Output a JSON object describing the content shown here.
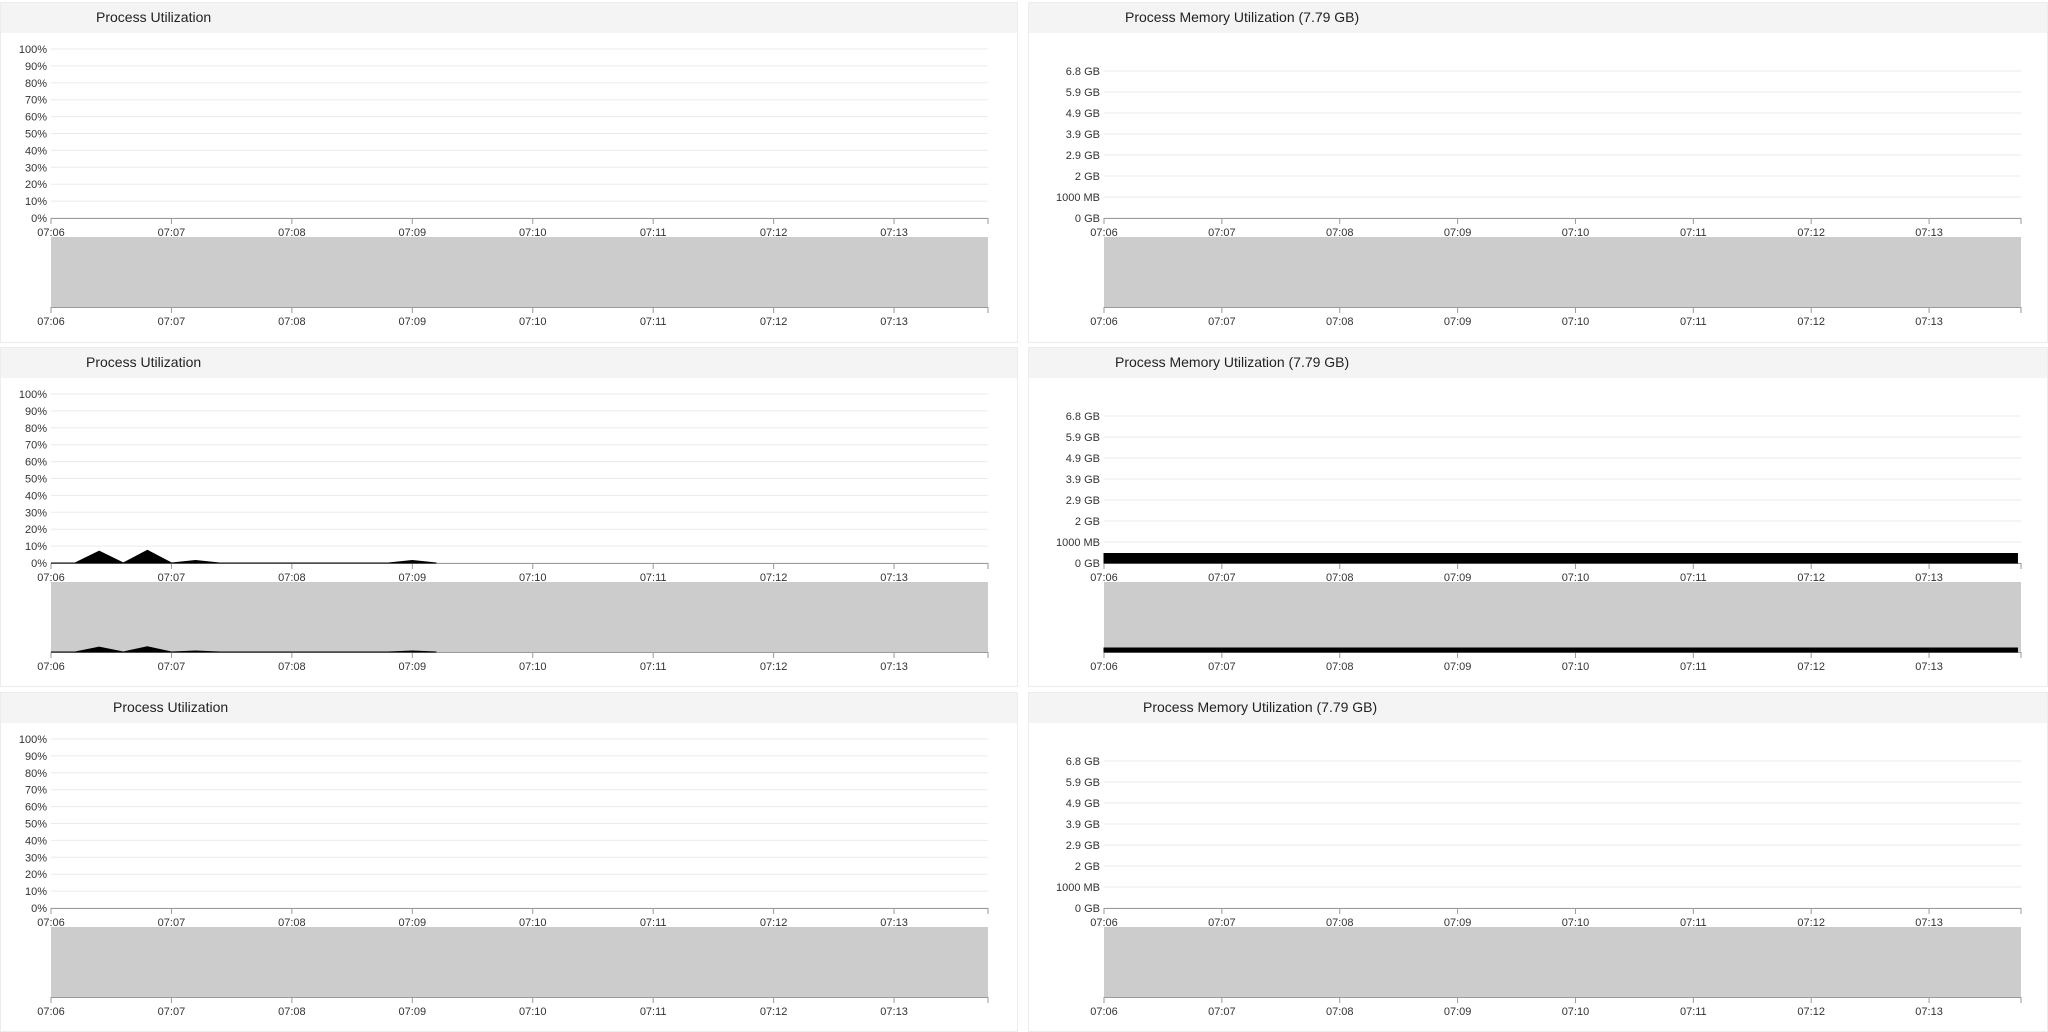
{
  "colors": {
    "grid": "#ebebeb",
    "axis": "#9a9a9a",
    "navigator": "#cccccc",
    "series": "#000000"
  },
  "panels": [
    {
      "title": "Process Utilization",
      "chart_data": {
        "type": "area",
        "title": "Process Utilization",
        "y_ticks": [
          "0%",
          "10%",
          "20%",
          "30%",
          "40%",
          "50%",
          "60%",
          "70%",
          "80%",
          "90%",
          "100%"
        ],
        "ylim": [
          0,
          100
        ],
        "x_ticks": [
          "07:06",
          "07:07",
          "07:08",
          "07:09",
          "07:10",
          "07:11",
          "07:12",
          "07:13"
        ],
        "x": [],
        "values": []
      }
    },
    {
      "title": "Process Memory Utilization (7.79 GB)",
      "chart_data": {
        "type": "area",
        "title": "Process Memory Utilization (7.79 GB)",
        "y_ticks": [
          "0 GB",
          "1000 MB",
          "2 GB",
          "2.9 GB",
          "3.9 GB",
          "4.9 GB",
          "5.9 GB",
          "6.8 GB"
        ],
        "ylim": [
          0,
          7.79
        ],
        "x_ticks": [
          "07:06",
          "07:07",
          "07:08",
          "07:09",
          "07:10",
          "07:11",
          "07:12",
          "07:13"
        ],
        "x": [],
        "values": []
      }
    },
    {
      "title": "Process Utilization",
      "chart_data": {
        "type": "area",
        "title": "Process Utilization",
        "y_ticks": [
          "0%",
          "10%",
          "20%",
          "30%",
          "40%",
          "50%",
          "60%",
          "70%",
          "80%",
          "90%",
          "100%"
        ],
        "ylim": [
          0,
          100
        ],
        "x_ticks": [
          "07:06",
          "07:07",
          "07:08",
          "07:09",
          "07:10",
          "07:11",
          "07:12",
          "07:13"
        ],
        "x": [
          "07:06:00",
          "07:06:12",
          "07:06:24",
          "07:06:36",
          "07:06:48",
          "07:07:00",
          "07:07:12",
          "07:07:24",
          "07:08:48",
          "07:09:00",
          "07:09:12"
        ],
        "values": [
          0,
          0,
          7,
          0,
          7.5,
          0,
          1.5,
          0,
          0,
          1.5,
          0
        ]
      }
    },
    {
      "title": "Process Memory Utilization (7.79 GB)",
      "chart_data": {
        "type": "area",
        "title": "Process Memory Utilization (7.79 GB)",
        "y_ticks": [
          "0 GB",
          "1000 MB",
          "2 GB",
          "2.9 GB",
          "3.9 GB",
          "4.9 GB",
          "5.9 GB",
          "6.8 GB"
        ],
        "ylim": [
          0,
          7.79
        ],
        "x_ticks": [
          "07:06",
          "07:07",
          "07:08",
          "07:09",
          "07:10",
          "07:11",
          "07:12",
          "07:13"
        ],
        "x": [
          "07:06:00",
          "07:13:45"
        ],
        "values": [
          0.45,
          0.45
        ]
      }
    },
    {
      "title": "Process Utilization",
      "chart_data": {
        "type": "area",
        "title": "Process Utilization",
        "y_ticks": [
          "0%",
          "10%",
          "20%",
          "30%",
          "40%",
          "50%",
          "60%",
          "70%",
          "80%",
          "90%",
          "100%"
        ],
        "ylim": [
          0,
          100
        ],
        "x_ticks": [
          "07:06",
          "07:07",
          "07:08",
          "07:09",
          "07:10",
          "07:11",
          "07:12",
          "07:13"
        ],
        "x": [],
        "values": []
      }
    },
    {
      "title": "Process Memory Utilization (7.79 GB)",
      "chart_data": {
        "type": "area",
        "title": "Process Memory Utilization (7.79 GB)",
        "y_ticks": [
          "0 GB",
          "1000 MB",
          "2 GB",
          "2.9 GB",
          "3.9 GB",
          "4.9 GB",
          "5.9 GB",
          "6.8 GB"
        ],
        "ylim": [
          0,
          7.79
        ],
        "x_ticks": [
          "07:06",
          "07:07",
          "07:08",
          "07:09",
          "07:10",
          "07:11",
          "07:12",
          "07:13"
        ],
        "x": [],
        "values": []
      }
    }
  ]
}
